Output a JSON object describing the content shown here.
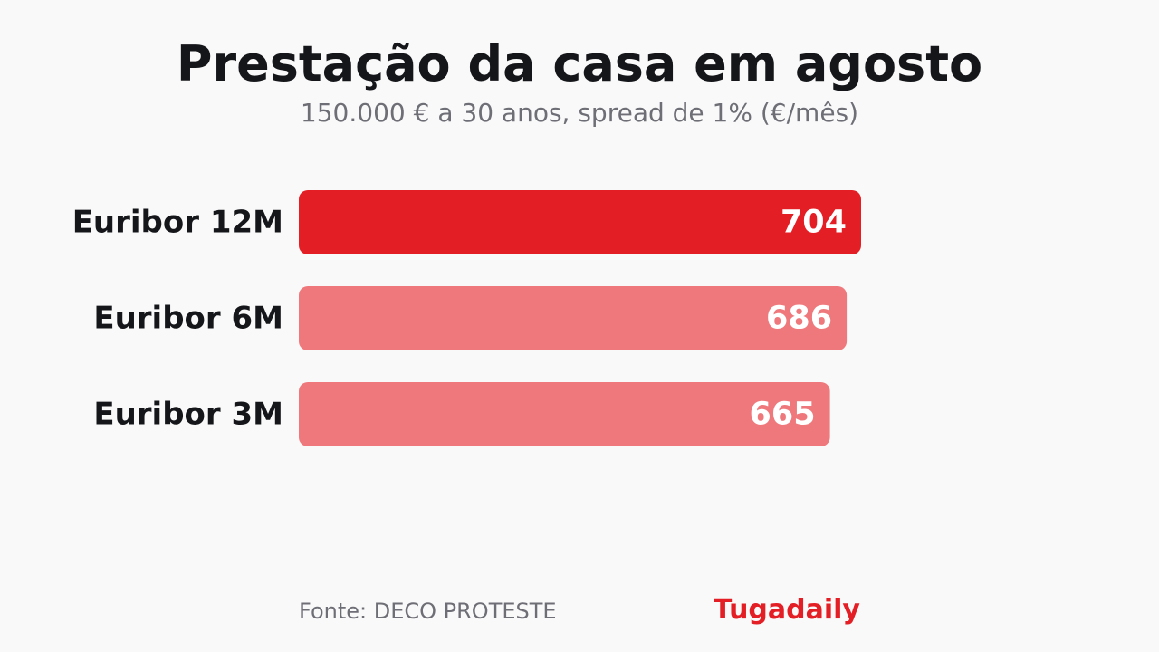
{
  "title": "Prestação da casa em agosto",
  "subtitle": "150.000 € a 30 anos, spread de 1% (€/mês)",
  "footer": {
    "source": "Fonte: DECO PROTESTE",
    "brand": "Tugadaily"
  },
  "colors": {
    "highlight": "#e41e25",
    "muted": "#ee787b",
    "label_text": "#15161a",
    "value_text": "#ffffff"
  },
  "chart_data": {
    "type": "bar",
    "orientation": "horizontal",
    "categories": [
      "Euribor 12M",
      "Euribor 6M",
      "Euribor 3M"
    ],
    "values": [
      704,
      686,
      665
    ],
    "highlighted_category": "Euribor 12M",
    "title": "Prestação da casa em agosto",
    "subtitle": "150.000 € a 30 anos, spread de 1% (€/mês)",
    "xlabel": "",
    "ylabel": "",
    "xlim": [
      0,
      704
    ],
    "grid": false,
    "legend": "none"
  }
}
